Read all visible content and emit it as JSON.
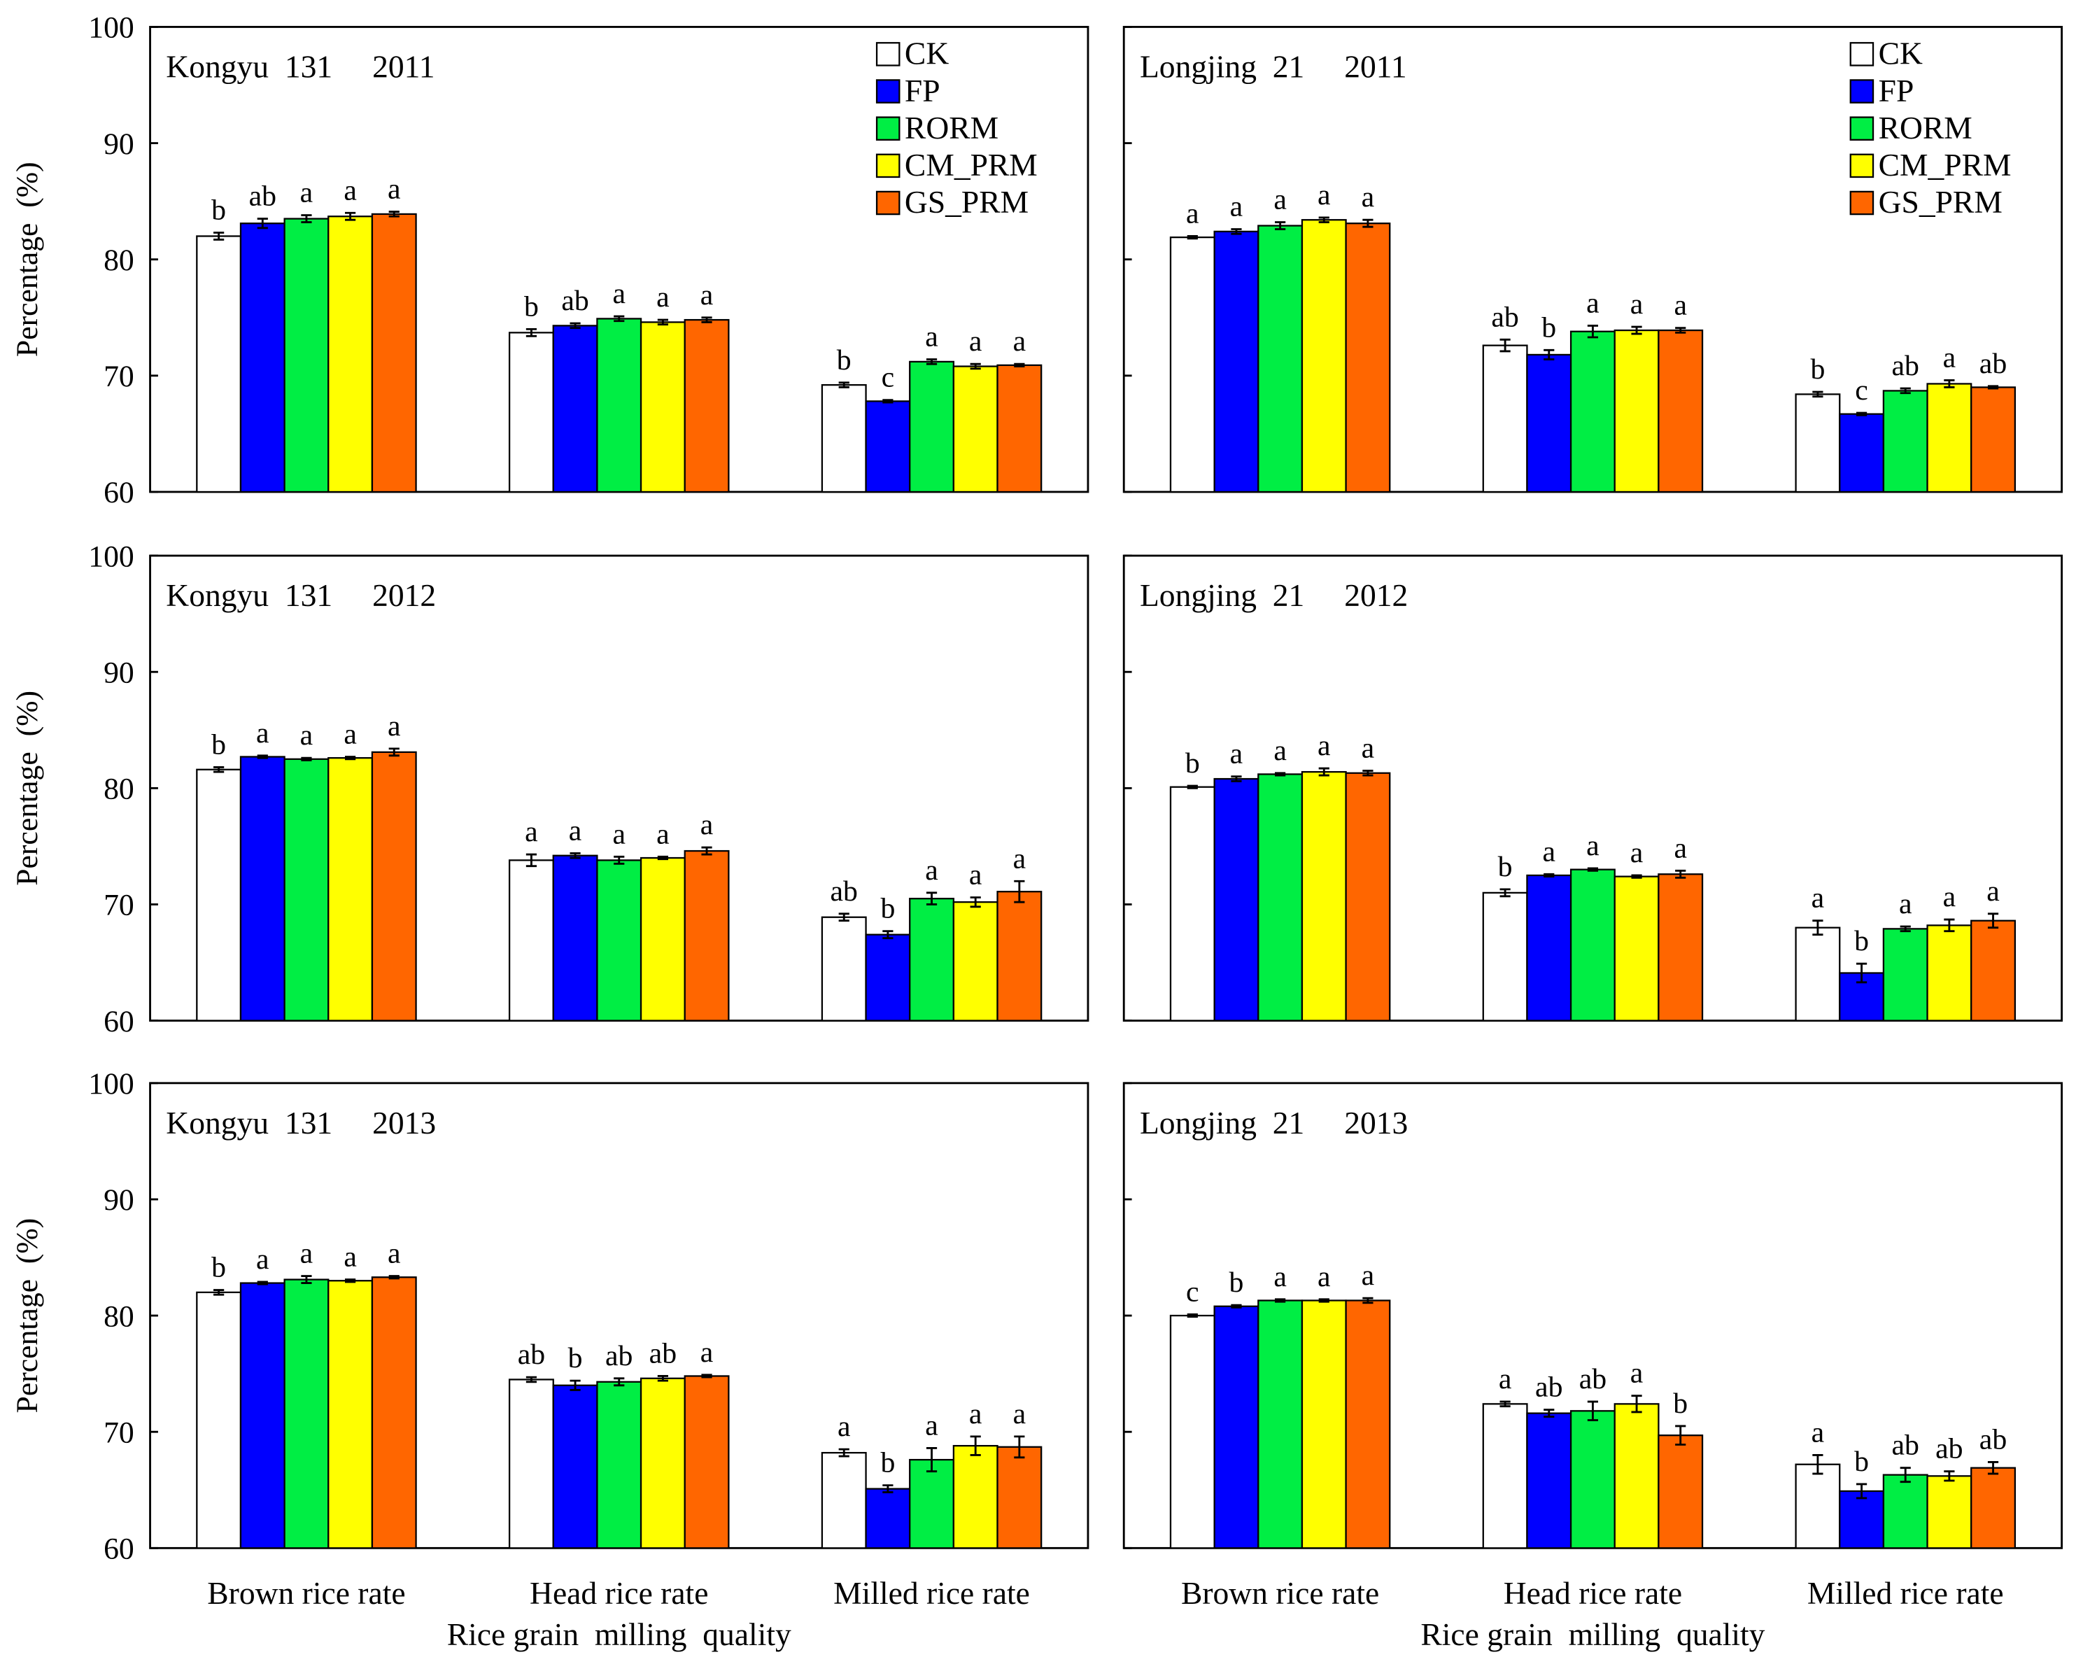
{
  "chart_data": [
    {
      "type": "bar",
      "title": "Kongyu  131     2011",
      "ylabel": "Percentage  (%)",
      "ylim": [
        60,
        100
      ],
      "yticks": [
        60,
        70,
        80,
        90,
        100
      ],
      "ytick_labels": true,
      "legend": true,
      "series": [
        {
          "name": "CK",
          "color": "#ffffff",
          "values": [
            82.0,
            73.7,
            69.2
          ],
          "errors": [
            0.3,
            0.3,
            0.2
          ],
          "letters": [
            "b",
            "b",
            "b"
          ]
        },
        {
          "name": "FP",
          "color": "#0000ff",
          "values": [
            83.1,
            74.3,
            67.8
          ],
          "errors": [
            0.4,
            0.2,
            0.1
          ],
          "letters": [
            "ab",
            "ab",
            "c"
          ]
        },
        {
          "name": "RORM",
          "color": "#00ee44",
          "values": [
            83.5,
            74.9,
            71.2
          ],
          "errors": [
            0.3,
            0.2,
            0.2
          ],
          "letters": [
            "a",
            "a",
            "a"
          ]
        },
        {
          "name": "CM_PRM",
          "color": "#ffff00",
          "values": [
            83.7,
            74.6,
            70.8
          ],
          "errors": [
            0.3,
            0.2,
            0.2
          ],
          "letters": [
            "a",
            "a",
            "a"
          ]
        },
        {
          "name": "GS_PRM",
          "color": "#ff6600",
          "values": [
            83.9,
            74.8,
            70.9
          ],
          "errors": [
            0.2,
            0.2,
            0.1
          ],
          "letters": [
            "a",
            "a",
            "a"
          ]
        }
      ]
    },
    {
      "type": "bar",
      "title": "Longjing  21     2011",
      "ylim": [
        60,
        100
      ],
      "yticks": [
        60,
        70,
        80,
        90,
        100
      ],
      "ytick_labels": false,
      "legend": true,
      "series": [
        {
          "name": "CK",
          "color": "#ffffff",
          "values": [
            81.9,
            72.6,
            68.4
          ],
          "errors": [
            0.1,
            0.5,
            0.2
          ],
          "letters": [
            "a",
            "ab",
            "b"
          ]
        },
        {
          "name": "FP",
          "color": "#0000ff",
          "values": [
            82.4,
            71.8,
            66.7
          ],
          "errors": [
            0.2,
            0.4,
            0.1
          ],
          "letters": [
            "a",
            "b",
            "c"
          ]
        },
        {
          "name": "RORM",
          "color": "#00ee44",
          "values": [
            82.9,
            73.8,
            68.7
          ],
          "errors": [
            0.3,
            0.5,
            0.2
          ],
          "letters": [
            "a",
            "a",
            "ab"
          ]
        },
        {
          "name": "CM_PRM",
          "color": "#ffff00",
          "values": [
            83.4,
            73.9,
            69.3
          ],
          "errors": [
            0.2,
            0.3,
            0.3
          ],
          "letters": [
            "a",
            "a",
            "a"
          ]
        },
        {
          "name": "GS_PRM",
          "color": "#ff6600",
          "values": [
            83.1,
            73.9,
            69.0
          ],
          "errors": [
            0.3,
            0.2,
            0.1
          ],
          "letters": [
            "a",
            "a",
            "ab"
          ]
        }
      ]
    },
    {
      "type": "bar",
      "title": "Kongyu  131     2012",
      "ylabel": "Percentage  (%)",
      "ylim": [
        60,
        100
      ],
      "yticks": [
        60,
        70,
        80,
        90,
        100
      ],
      "ytick_labels": true,
      "legend": false,
      "series": [
        {
          "name": "CK",
          "color": "#ffffff",
          "values": [
            81.6,
            73.8,
            68.9
          ],
          "errors": [
            0.2,
            0.5,
            0.3
          ],
          "letters": [
            "b",
            "a",
            "ab"
          ]
        },
        {
          "name": "FP",
          "color": "#0000ff",
          "values": [
            82.7,
            74.2,
            67.4
          ],
          "errors": [
            0.1,
            0.2,
            0.3
          ],
          "letters": [
            "a",
            "a",
            "b"
          ]
        },
        {
          "name": "RORM",
          "color": "#00ee44",
          "values": [
            82.5,
            73.8,
            70.5
          ],
          "errors": [
            0.1,
            0.3,
            0.5
          ],
          "letters": [
            "a",
            "a",
            "a"
          ]
        },
        {
          "name": "CM_PRM",
          "color": "#ffff00",
          "values": [
            82.6,
            74.0,
            70.2
          ],
          "errors": [
            0.1,
            0.1,
            0.4
          ],
          "letters": [
            "a",
            "a",
            "a"
          ]
        },
        {
          "name": "GS_PRM",
          "color": "#ff6600",
          "values": [
            83.1,
            74.6,
            71.1
          ],
          "errors": [
            0.3,
            0.3,
            0.9
          ],
          "letters": [
            "a",
            "a",
            "a"
          ]
        }
      ]
    },
    {
      "type": "bar",
      "title": "Longjing  21     2012",
      "ylim": [
        60,
        100
      ],
      "yticks": [
        60,
        70,
        80,
        90,
        100
      ],
      "ytick_labels": false,
      "legend": false,
      "series": [
        {
          "name": "CK",
          "color": "#ffffff",
          "values": [
            80.1,
            71.0,
            68.0
          ],
          "errors": [
            0.1,
            0.3,
            0.6
          ],
          "letters": [
            "b",
            "b",
            "a"
          ]
        },
        {
          "name": "FP",
          "color": "#0000ff",
          "values": [
            80.8,
            72.5,
            64.1
          ],
          "errors": [
            0.2,
            0.1,
            0.8
          ],
          "letters": [
            "a",
            "a",
            "b"
          ]
        },
        {
          "name": "RORM",
          "color": "#00ee44",
          "values": [
            81.2,
            73.0,
            67.9
          ],
          "errors": [
            0.1,
            0.1,
            0.2
          ],
          "letters": [
            "a",
            "a",
            "a"
          ]
        },
        {
          "name": "CM_PRM",
          "color": "#ffff00",
          "values": [
            81.4,
            72.4,
            68.2
          ],
          "errors": [
            0.3,
            0.1,
            0.5
          ],
          "letters": [
            "a",
            "a",
            "a"
          ]
        },
        {
          "name": "GS_PRM",
          "color": "#ff6600",
          "values": [
            81.3,
            72.6,
            68.6
          ],
          "errors": [
            0.2,
            0.3,
            0.6
          ],
          "letters": [
            "a",
            "a",
            "a"
          ]
        }
      ]
    },
    {
      "type": "bar",
      "title": "Kongyu  131     2013",
      "ylabel": "Percentage  (%)",
      "xlabel": "Rice grain  milling  quality",
      "categories": [
        "Brown rice rate",
        "Head rice rate",
        "Milled rice rate"
      ],
      "ylim": [
        60,
        100
      ],
      "yticks": [
        60,
        70,
        80,
        90,
        100
      ],
      "ytick_labels": true,
      "legend": false,
      "series": [
        {
          "name": "CK",
          "color": "#ffffff",
          "values": [
            82.0,
            74.5,
            68.2
          ],
          "errors": [
            0.2,
            0.2,
            0.3
          ],
          "letters": [
            "b",
            "ab",
            "a"
          ]
        },
        {
          "name": "FP",
          "color": "#0000ff",
          "values": [
            82.8,
            74.0,
            65.1
          ],
          "errors": [
            0.1,
            0.4,
            0.3
          ],
          "letters": [
            "a",
            "b",
            "b"
          ]
        },
        {
          "name": "RORM",
          "color": "#00ee44",
          "values": [
            83.1,
            74.3,
            67.6
          ],
          "errors": [
            0.3,
            0.3,
            1.0
          ],
          "letters": [
            "a",
            "ab",
            "a"
          ]
        },
        {
          "name": "CM_PRM",
          "color": "#ffff00",
          "values": [
            83.0,
            74.6,
            68.8
          ],
          "errors": [
            0.1,
            0.2,
            0.8
          ],
          "letters": [
            "a",
            "ab",
            "a"
          ]
        },
        {
          "name": "GS_PRM",
          "color": "#ff6600",
          "values": [
            83.3,
            74.8,
            68.7
          ],
          "errors": [
            0.1,
            0.1,
            0.9
          ],
          "letters": [
            "a",
            "a",
            "a"
          ]
        }
      ]
    },
    {
      "type": "bar",
      "title": "Longjing  21     2013",
      "xlabel": "Rice grain  milling  quality",
      "categories": [
        "Brown rice rate",
        "Head rice rate",
        "Milled rice rate"
      ],
      "ylim": [
        60,
        100
      ],
      "yticks": [
        60,
        70,
        80,
        90,
        100
      ],
      "ytick_labels": false,
      "legend": false,
      "series": [
        {
          "name": "CK",
          "color": "#ffffff",
          "values": [
            80.0,
            72.4,
            67.2
          ],
          "errors": [
            0.1,
            0.2,
            0.8
          ],
          "letters": [
            "c",
            "a",
            "a"
          ]
        },
        {
          "name": "FP",
          "color": "#0000ff",
          "values": [
            80.8,
            71.6,
            64.9
          ],
          "errors": [
            0.1,
            0.3,
            0.6
          ],
          "letters": [
            "b",
            "ab",
            "b"
          ]
        },
        {
          "name": "RORM",
          "color": "#00ee44",
          "values": [
            81.3,
            71.8,
            66.3
          ],
          "errors": [
            0.1,
            0.8,
            0.6
          ],
          "letters": [
            "a",
            "ab",
            "ab"
          ]
        },
        {
          "name": "CM_PRM",
          "color": "#ffff00",
          "values": [
            81.3,
            72.4,
            66.2
          ],
          "errors": [
            0.1,
            0.7,
            0.4
          ],
          "letters": [
            "a",
            "a",
            "ab"
          ]
        },
        {
          "name": "GS_PRM",
          "color": "#ff6600",
          "values": [
            81.3,
            69.7,
            66.9
          ],
          "errors": [
            0.2,
            0.8,
            0.5
          ],
          "letters": [
            "a",
            "b",
            "ab"
          ]
        }
      ]
    }
  ]
}
